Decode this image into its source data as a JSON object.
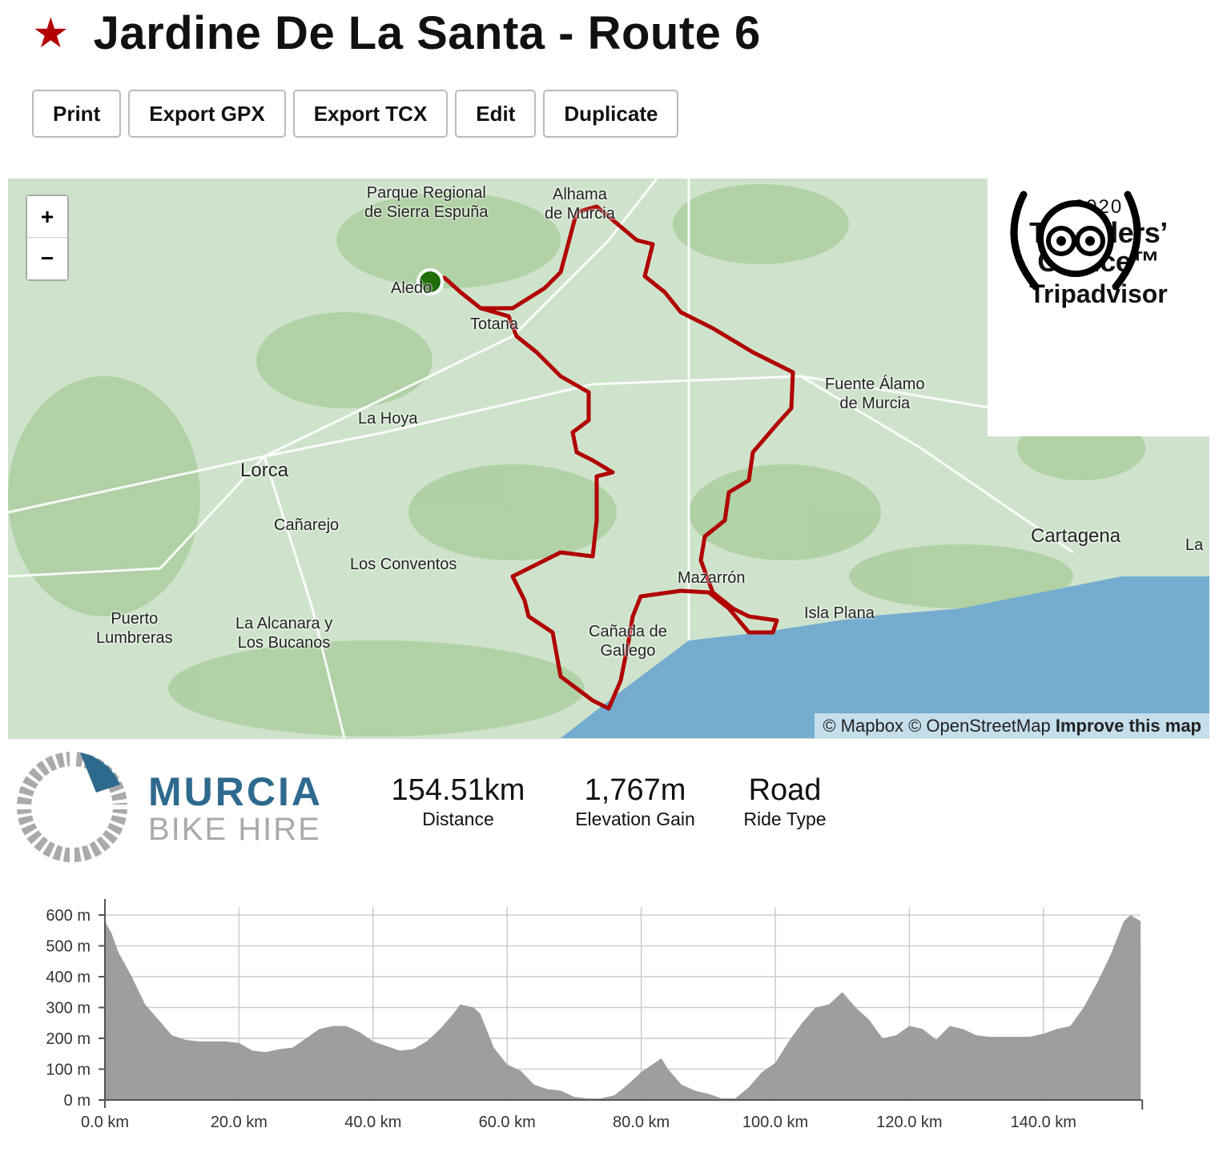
{
  "header": {
    "title": "Jardine De La Santa - Route 6",
    "star_color": "#b30000"
  },
  "toolbar": {
    "buttons": [
      "Print",
      "Export GPX",
      "Export TCX",
      "Edit",
      "Duplicate"
    ]
  },
  "map": {
    "zoom_in": "+",
    "zoom_out": "−",
    "route_color": "#b00000",
    "start_marker_color": "#1f6e0a",
    "labels": {
      "sierra": "Parque Regional\nde Sierra Espuña",
      "alhama": "Alhama\nde Murcia",
      "aledo": "Aledo",
      "totana": "Totana",
      "fuente": "Fuente Álamo\nde Murcia",
      "lahoya": "La Hoya",
      "lorca": "Lorca",
      "canarejo": "Cañarejo",
      "conventos": "Los Conventos",
      "cartagena": "Cartagena",
      "la": "La",
      "mazarron": "Mazarrón",
      "isla": "Isla Plana",
      "canada": "Cañada de\nGallego",
      "puerto": "Puerto\nLumbreras",
      "alcanara": "La Alcanara y\nLos Bucanos"
    },
    "attribution": {
      "mapbox": "© Mapbox",
      "osm": "© OpenStreetMap",
      "improve": "Improve this map"
    },
    "badge": {
      "year": "2020",
      "line1": "Travellers’",
      "line2": "Choice™",
      "brand": "Tripadvisor"
    }
  },
  "brand": {
    "line1": "MURCIA",
    "line2": "BIKE HIRE",
    "blue": "#2e6a8e",
    "grey": "#aaaaaa"
  },
  "stats": [
    {
      "value": "154.51km",
      "label": "Distance"
    },
    {
      "value": "1,767m",
      "label": "Elevation Gain"
    },
    {
      "value": "Road",
      "label": "Ride Type"
    }
  ],
  "chart_data": {
    "type": "area",
    "xlabel": "",
    "ylabel": "",
    "xlim": [
      0,
      154.51
    ],
    "ylim": [
      0,
      600
    ],
    "x_ticks": [
      "0.0 km",
      "20.0 km",
      "40.0 km",
      "60.0 km",
      "80.0 km",
      "100.0 km",
      "120.0 km",
      "140.0 km"
    ],
    "y_ticks": [
      "0 m",
      "100 m",
      "200 m",
      "300 m",
      "400 m",
      "500 m",
      "600 m"
    ],
    "grid": true,
    "fill_color": "#999999",
    "x": [
      0,
      1,
      2,
      4,
      6,
      8,
      10,
      12,
      14,
      16,
      18,
      20,
      22,
      24,
      26,
      28,
      30,
      32,
      34,
      36,
      38,
      40,
      42,
      44,
      46,
      48,
      50,
      52,
      53,
      55,
      56,
      58,
      60,
      62,
      64,
      66,
      68,
      70,
      72,
      74,
      76,
      78,
      80,
      82,
      83,
      84,
      86,
      88,
      90,
      92,
      94,
      96,
      98,
      100,
      102,
      104,
      106,
      108,
      110,
      112,
      114,
      116,
      118,
      120,
      122,
      124,
      126,
      128,
      130,
      132,
      134,
      136,
      138,
      140,
      142,
      144,
      146,
      148,
      150,
      152,
      153,
      154.51
    ],
    "y": [
      580,
      540,
      480,
      400,
      310,
      260,
      210,
      195,
      190,
      190,
      190,
      185,
      160,
      155,
      165,
      170,
      200,
      230,
      240,
      240,
      220,
      190,
      175,
      160,
      165,
      190,
      230,
      280,
      310,
      300,
      280,
      170,
      115,
      95,
      50,
      35,
      30,
      10,
      5,
      5,
      15,
      50,
      90,
      120,
      135,
      100,
      50,
      30,
      20,
      5,
      5,
      40,
      90,
      120,
      190,
      250,
      300,
      310,
      350,
      300,
      260,
      200,
      210,
      240,
      230,
      195,
      240,
      230,
      210,
      205,
      205,
      205,
      205,
      215,
      230,
      240,
      300,
      380,
      470,
      580,
      600,
      580
    ]
  }
}
